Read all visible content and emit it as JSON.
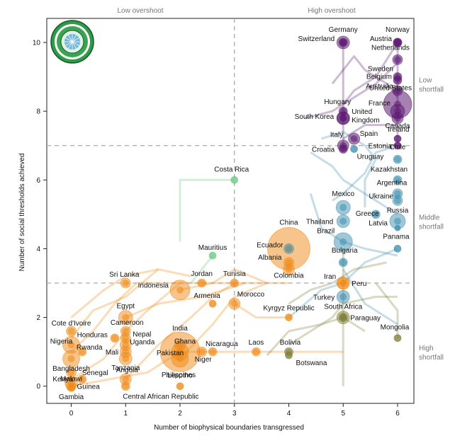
{
  "chart_data": {
    "type": "scatter",
    "xlabel": "Number of biophysical boundaries transgressed",
    "ylabel": "Number of social thresholds achieved",
    "xlim": [
      -0.45,
      6.3
    ],
    "ylim": [
      -0.5,
      10.7
    ],
    "x_ticks": [
      0,
      1,
      2,
      3,
      4,
      5,
      6
    ],
    "y_ticks": [
      0,
      2,
      4,
      6,
      8,
      10
    ],
    "grid": false,
    "reference_lines": {
      "x": 3,
      "y": [
        3,
        7
      ]
    },
    "top_labels": [
      "Low overshoot",
      "High overshoot"
    ],
    "right_labels": [
      {
        "text": "Low\nshortfall",
        "y": 8.8
      },
      {
        "text": "Middle\nshortfall",
        "y": 4.8
      },
      {
        "text": "High\nshortfall",
        "y": 1.0
      }
    ],
    "colors": {
      "low_overshoot": "#ef8a17",
      "high_overshoot_high_shortfall": "#7f7f3a",
      "high_overshoot_middle_shortfall": "#3f90b0",
      "high_overshoot_low_shortfall": "#5c1a72",
      "costa_rica": "#6cc97e"
    },
    "points": [
      {
        "name": "Germany",
        "x": 5,
        "y": 10,
        "size": 9,
        "group": "low"
      },
      {
        "name": "Norway",
        "x": 6,
        "y": 10,
        "size": 6,
        "group": "low"
      },
      {
        "name": "Switzerland",
        "x": 5,
        "y": 10,
        "size": 6,
        "group": "low"
      },
      {
        "name": "Austria",
        "x": 6,
        "y": 10,
        "size": 6,
        "group": "low"
      },
      {
        "name": "Netherlands",
        "x": 6,
        "y": 9.5,
        "size": 7,
        "group": "low"
      },
      {
        "name": "Sweden",
        "x": 6,
        "y": 9,
        "size": 6,
        "group": "low"
      },
      {
        "name": "Belgium",
        "x": 6,
        "y": 8.9,
        "size": 6,
        "group": "low"
      },
      {
        "name": "Australia",
        "x": 6,
        "y": 8.6,
        "size": 7,
        "group": "low"
      },
      {
        "name": "United States",
        "x": 6,
        "y": 8.2,
        "size": 20,
        "group": "low"
      },
      {
        "name": "Hungary",
        "x": 5,
        "y": 8,
        "size": 6,
        "group": "low"
      },
      {
        "name": "France",
        "x": 6,
        "y": 8,
        "size": 10,
        "group": "low"
      },
      {
        "name": "South Korea",
        "x": 5,
        "y": 7.8,
        "size": 9,
        "group": "low"
      },
      {
        "name": "United Kingdom",
        "x": 5,
        "y": 7.8,
        "size": 9,
        "group": "low"
      },
      {
        "name": "Canada",
        "x": 6,
        "y": 7.8,
        "size": 8,
        "group": "low"
      },
      {
        "name": "Ireland",
        "x": 6,
        "y": 7.2,
        "size": 5,
        "group": "low"
      },
      {
        "name": "Spain",
        "x": 5.2,
        "y": 7.2,
        "size": 8,
        "group": "low"
      },
      {
        "name": "Italy",
        "x": 5,
        "y": 7,
        "size": 8,
        "group": "low"
      },
      {
        "name": "Estonia",
        "x": 6,
        "y": 7,
        "size": 5,
        "group": "low"
      },
      {
        "name": "Croatia",
        "x": 5,
        "y": 6.9,
        "size": 6,
        "group": "low"
      },
      {
        "name": "Uruguay",
        "x": 5.2,
        "y": 6.9,
        "size": 5,
        "group": "mid"
      },
      {
        "name": "Chile",
        "x": 6,
        "y": 6.6,
        "size": 6,
        "group": "mid"
      },
      {
        "name": "Kazakhstan",
        "x": 6,
        "y": 6,
        "size": 6,
        "group": "mid"
      },
      {
        "name": "Costa Rica",
        "x": 3,
        "y": 6,
        "size": 5,
        "group": "cr"
      },
      {
        "name": "Argentina",
        "x": 6,
        "y": 5.6,
        "size": 7,
        "group": "mid"
      },
      {
        "name": "Mexico",
        "x": 5,
        "y": 5.2,
        "size": 10,
        "group": "mid"
      },
      {
        "name": "Ukraine",
        "x": 6,
        "y": 5.4,
        "size": 7,
        "group": "mid"
      },
      {
        "name": "Greece",
        "x": 5.6,
        "y": 5,
        "size": 6,
        "group": "mid"
      },
      {
        "name": "Russia",
        "x": 6,
        "y": 4.8,
        "size": 11,
        "group": "mid"
      },
      {
        "name": "Thailand",
        "x": 5,
        "y": 4.8,
        "size": 9,
        "group": "mid"
      },
      {
        "name": "Latvia",
        "x": 6,
        "y": 4.6,
        "size": 4,
        "group": "mid"
      },
      {
        "name": "China",
        "x": 4,
        "y": 4,
        "size": 30,
        "group": "lowov"
      },
      {
        "name": "Brazil",
        "x": 5,
        "y": 4.2,
        "size": 13,
        "group": "mid"
      },
      {
        "name": "Ecuador",
        "x": 4,
        "y": 4,
        "size": 7,
        "group": "mid"
      },
      {
        "name": "Panama",
        "x": 6,
        "y": 4,
        "size": 5,
        "group": "mid"
      },
      {
        "name": "Mauritius",
        "x": 2.6,
        "y": 3.8,
        "size": 5,
        "group": "cr"
      },
      {
        "name": "Bulgaria",
        "x": 5,
        "y": 3.6,
        "size": 6,
        "group": "mid"
      },
      {
        "name": "Albania",
        "x": 4,
        "y": 3.6,
        "size": 7,
        "group": "lowov"
      },
      {
        "name": "Colombia",
        "x": 4,
        "y": 3.4,
        "size": 8,
        "group": "lowov"
      },
      {
        "name": "Sri Lanka",
        "x": 1,
        "y": 3,
        "size": 7,
        "group": "lowov"
      },
      {
        "name": "Indonesia",
        "x": 2,
        "y": 2.8,
        "size": 14,
        "group": "lowov"
      },
      {
        "name": "Jordan",
        "x": 2.4,
        "y": 3,
        "size": 6,
        "group": "lowov"
      },
      {
        "name": "Tunisia",
        "x": 3,
        "y": 3,
        "size": 6,
        "group": "lowov"
      },
      {
        "name": "Iran",
        "x": 5,
        "y": 3,
        "size": 9,
        "group": "lowov"
      },
      {
        "name": "Peru",
        "x": 5,
        "y": 3,
        "size": 8,
        "group": "lowov"
      },
      {
        "name": "Armenia",
        "x": 2.6,
        "y": 2.4,
        "size": 5,
        "group": "lowov"
      },
      {
        "name": "Morocco",
        "x": 3,
        "y": 2.4,
        "size": 8,
        "group": "lowov"
      },
      {
        "name": "Turkey",
        "x": 5,
        "y": 2.6,
        "size": 9,
        "group": "mid"
      },
      {
        "name": "Egypt",
        "x": 1,
        "y": 2,
        "size": 10,
        "group": "lowov"
      },
      {
        "name": "Kyrgyz Republic",
        "x": 4,
        "y": 2,
        "size": 5,
        "group": "lowov"
      },
      {
        "name": "South Africa",
        "x": 5,
        "y": 2,
        "size": 9,
        "group": "hi"
      },
      {
        "name": "Paraguay",
        "x": 5,
        "y": 2,
        "size": 6,
        "group": "hi"
      },
      {
        "name": "Cote d'Ivoire",
        "x": 0,
        "y": 1.6,
        "size": 7,
        "group": "lowov"
      },
      {
        "name": "Cameroon",
        "x": 1,
        "y": 1.6,
        "size": 7,
        "group": "lowov"
      },
      {
        "name": "India",
        "x": 2,
        "y": 1,
        "size": 28,
        "group": "lowov"
      },
      {
        "name": "Honduras",
        "x": 0.8,
        "y": 1.4,
        "size": 6,
        "group": "lowov"
      },
      {
        "name": "Nepal",
        "x": 1,
        "y": 1.4,
        "size": 7,
        "group": "lowov"
      },
      {
        "name": "Nigeria",
        "x": 0,
        "y": 1.2,
        "size": 12,
        "group": "lowov"
      },
      {
        "name": "Rwanda",
        "x": 0.2,
        "y": 1,
        "size": 6,
        "group": "lowov"
      },
      {
        "name": "Uganda",
        "x": 1,
        "y": 1.2,
        "size": 8,
        "group": "lowov"
      },
      {
        "name": "Ghana",
        "x": 2,
        "y": 1.2,
        "size": 8,
        "group": "lowov"
      },
      {
        "name": "Mongolia",
        "x": 6,
        "y": 1.4,
        "size": 5,
        "group": "hi"
      },
      {
        "name": "Mali",
        "x": 1,
        "y": 1,
        "size": 8,
        "group": "lowov"
      },
      {
        "name": "Pakistan",
        "x": 2,
        "y": 1,
        "size": 12,
        "group": "lowov"
      },
      {
        "name": "Nicaragua",
        "x": 2.6,
        "y": 1,
        "size": 6,
        "group": "lowov"
      },
      {
        "name": "Laos",
        "x": 3.4,
        "y": 1,
        "size": 6,
        "group": "lowov"
      },
      {
        "name": "Bolivia",
        "x": 4,
        "y": 1,
        "size": 6,
        "group": "hi"
      },
      {
        "name": "Bangladesh",
        "x": 0,
        "y": 0.8,
        "size": 12,
        "group": "lowov"
      },
      {
        "name": "Tanzania",
        "x": 1,
        "y": 0.8,
        "size": 9,
        "group": "lowov"
      },
      {
        "name": "Niger",
        "x": 2.4,
        "y": 1,
        "size": 7,
        "group": "lowov"
      },
      {
        "name": "Botswana",
        "x": 4,
        "y": 0.9,
        "size": 5,
        "group": "hi"
      },
      {
        "name": "Philippines",
        "x": 2,
        "y": 0.8,
        "size": 12,
        "group": "lowov"
      },
      {
        "name": "Malawi",
        "x": 0,
        "y": 0.4,
        "size": 7,
        "group": "lowov"
      },
      {
        "name": "Senegal",
        "x": 0.2,
        "y": 0.2,
        "size": 6,
        "group": "lowov"
      },
      {
        "name": "Angola",
        "x": 1,
        "y": 0.2,
        "size": 8,
        "group": "lowov"
      },
      {
        "name": "Kenya",
        "x": 0,
        "y": 0.1,
        "size": 9,
        "group": "lowov"
      },
      {
        "name": "Guinea",
        "x": 0,
        "y": 0,
        "size": 7,
        "group": "lowov"
      },
      {
        "name": "Lesotho",
        "x": 2,
        "y": 0,
        "size": 5,
        "group": "lowov"
      },
      {
        "name": "Central African Republic",
        "x": 1,
        "y": 0,
        "size": 6,
        "group": "lowov"
      },
      {
        "name": "Gambia",
        "x": 0,
        "y": -0.05,
        "size": 5,
        "group": "lowov"
      }
    ]
  }
}
